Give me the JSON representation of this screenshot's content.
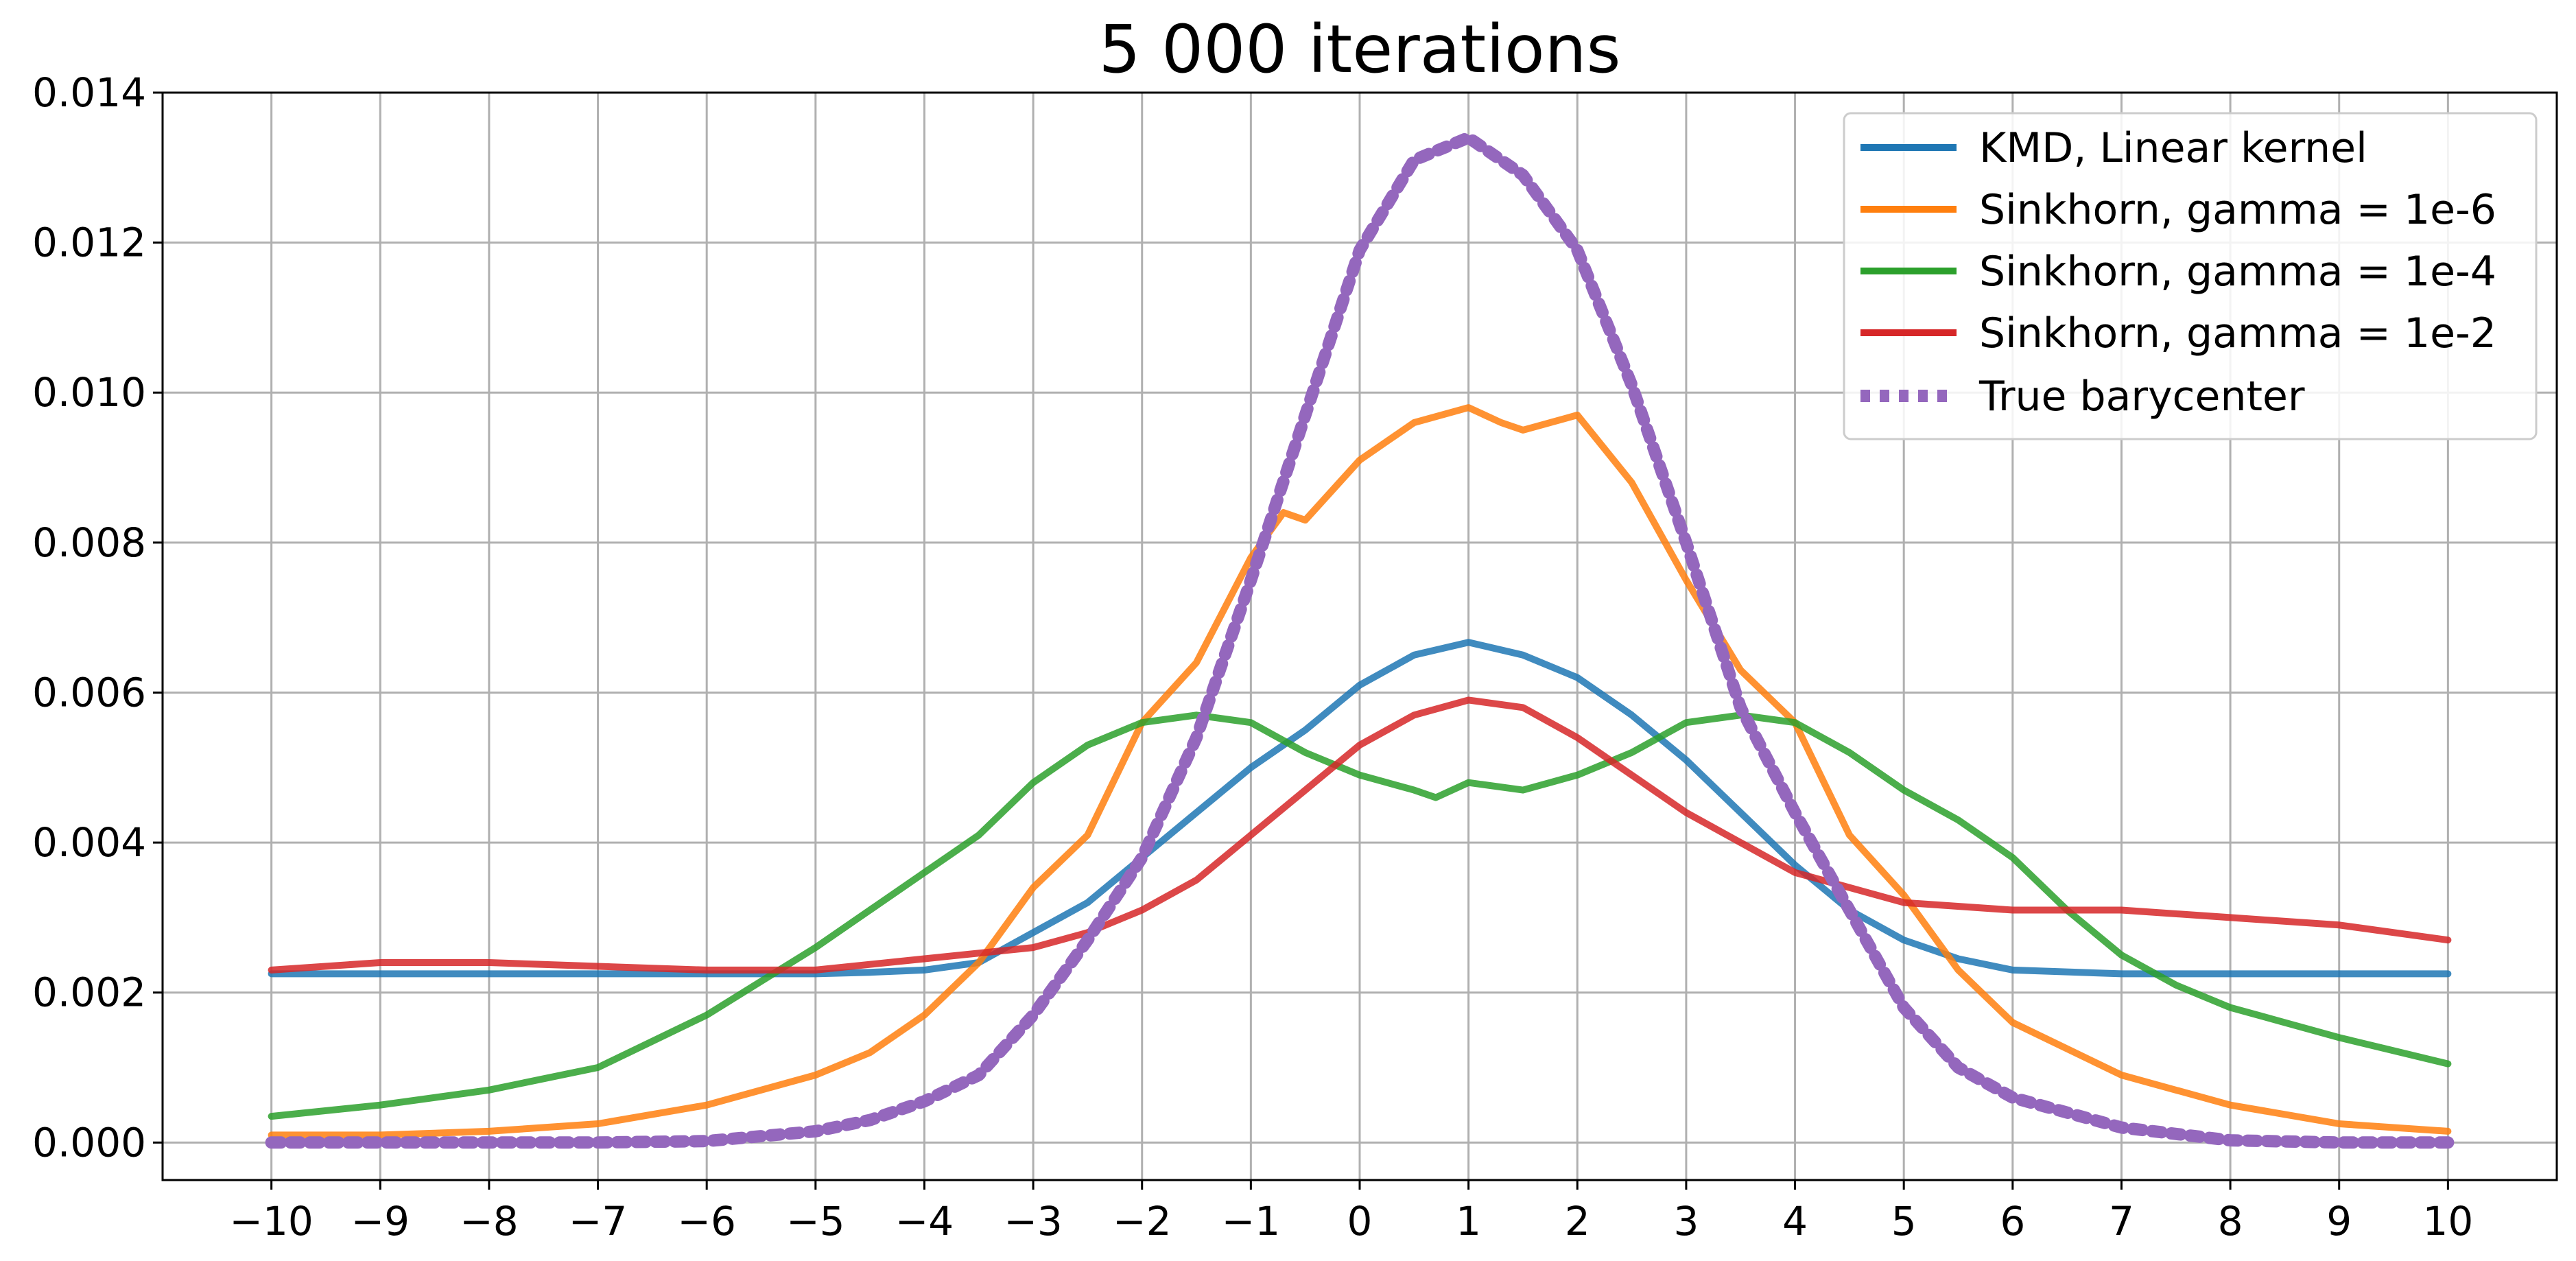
{
  "chart_data": {
    "type": "line",
    "title": "5 000 iterations",
    "xlabel": "",
    "ylabel": "",
    "xlim": [
      -11,
      11
    ],
    "ylim": [
      -0.0005,
      0.014
    ],
    "grid": true,
    "legend_position": "top-right",
    "x_ticks": [
      -10,
      -9,
      -8,
      -7,
      -6,
      -5,
      -4,
      -3,
      -2,
      -1,
      0,
      1,
      2,
      3,
      4,
      5,
      6,
      7,
      8,
      9,
      10
    ],
    "x_tick_labels": [
      "−10",
      "−9",
      "−8",
      "−7",
      "−6",
      "−5",
      "−4",
      "−3",
      "−2",
      "−1",
      "0",
      "1",
      "2",
      "3",
      "4",
      "5",
      "6",
      "7",
      "8",
      "9",
      "10"
    ],
    "y_ticks": [
      0,
      0.002,
      0.004,
      0.006,
      0.008,
      0.01,
      0.012,
      0.014
    ],
    "y_tick_labels": [
      "0.000",
      "0.002",
      "0.004",
      "0.006",
      "0.008",
      "0.010",
      "0.012",
      "0.014"
    ],
    "series": [
      {
        "name": "KMD, Linear kernel",
        "color": "#1f77b4",
        "style": "solid",
        "x": [
          -10,
          -9,
          -8,
          -7,
          -6,
          -5,
          -4.5,
          -4,
          -3.5,
          -3,
          -2.5,
          -2,
          -1.5,
          -1,
          -0.5,
          0,
          0.5,
          1,
          1.5,
          2,
          2.5,
          3,
          3.5,
          4,
          4.5,
          5,
          5.5,
          6,
          7,
          8,
          9,
          10
        ],
        "y": [
          0.00225,
          0.00225,
          0.00225,
          0.00225,
          0.00225,
          0.00225,
          0.00227,
          0.0023,
          0.0024,
          0.0028,
          0.0032,
          0.0038,
          0.0044,
          0.005,
          0.0055,
          0.0061,
          0.0065,
          0.00667,
          0.0065,
          0.0062,
          0.0057,
          0.0051,
          0.0044,
          0.0037,
          0.0031,
          0.0027,
          0.00245,
          0.0023,
          0.00225,
          0.00225,
          0.00225,
          0.00225
        ]
      },
      {
        "name": "Sinkhorn, gamma = 1e-6",
        "color": "#ff7f0e",
        "style": "solid",
        "x": [
          -10,
          -9,
          -8,
          -7,
          -6,
          -5,
          -4.5,
          -4,
          -3.5,
          -3,
          -2.5,
          -2,
          -1.5,
          -1,
          -0.7,
          -0.5,
          0,
          0.5,
          1,
          1.3,
          1.5,
          2,
          2.5,
          3,
          3.5,
          4,
          4.5,
          5,
          5.5,
          6,
          7,
          8,
          9,
          10
        ],
        "y": [
          0.0001,
          0.0001,
          0.00015,
          0.00025,
          0.0005,
          0.0009,
          0.0012,
          0.0017,
          0.0024,
          0.0034,
          0.0041,
          0.0056,
          0.0064,
          0.0078,
          0.0084,
          0.0083,
          0.0091,
          0.0096,
          0.0098,
          0.0096,
          0.0095,
          0.0097,
          0.0088,
          0.0075,
          0.0063,
          0.0056,
          0.0041,
          0.0033,
          0.0023,
          0.0016,
          0.0009,
          0.0005,
          0.00025,
          0.00015
        ]
      },
      {
        "name": "Sinkhorn, gamma = 1e-4",
        "color": "#2ca02c",
        "style": "solid",
        "x": [
          -10,
          -9,
          -8,
          -7,
          -6,
          -5,
          -4,
          -3.5,
          -3,
          -2.5,
          -2,
          -1.5,
          -1,
          -0.5,
          0,
          0.5,
          0.7,
          1,
          1.5,
          2,
          2.5,
          3,
          3.5,
          4,
          4.5,
          5,
          5.5,
          6,
          6.5,
          7,
          7.5,
          8,
          8.5,
          9,
          10
        ],
        "y": [
          0.00035,
          0.0005,
          0.0007,
          0.001,
          0.0017,
          0.0026,
          0.0036,
          0.0041,
          0.0048,
          0.0053,
          0.0056,
          0.0057,
          0.0056,
          0.0052,
          0.0049,
          0.0047,
          0.0046,
          0.0048,
          0.0047,
          0.0049,
          0.0052,
          0.0056,
          0.0057,
          0.0056,
          0.0052,
          0.0047,
          0.0043,
          0.0038,
          0.0031,
          0.0025,
          0.0021,
          0.0018,
          0.0016,
          0.0014,
          0.00105
        ]
      },
      {
        "name": "Sinkhorn, gamma = 1e-2",
        "color": "#d62728",
        "style": "solid",
        "x": [
          -10,
          -9,
          -8,
          -7,
          -6,
          -5,
          -4,
          -3,
          -2.5,
          -2,
          -1.5,
          -1,
          -0.5,
          0,
          0.5,
          1,
          1.5,
          2,
          2.5,
          3,
          3.5,
          4,
          4.5,
          5,
          6,
          7,
          8,
          9,
          10
        ],
        "y": [
          0.0023,
          0.0024,
          0.0024,
          0.00235,
          0.0023,
          0.0023,
          0.00245,
          0.0026,
          0.0028,
          0.0031,
          0.0035,
          0.0041,
          0.0047,
          0.0053,
          0.0057,
          0.0059,
          0.0058,
          0.0054,
          0.0049,
          0.0044,
          0.004,
          0.0036,
          0.0034,
          0.0032,
          0.0031,
          0.0031,
          0.003,
          0.0029,
          0.0027
        ]
      },
      {
        "name": "True barycenter",
        "color": "#9467bd",
        "style": "dotted",
        "x": [
          -10,
          -9,
          -8,
          -7,
          -6,
          -5,
          -4.5,
          -4,
          -3.5,
          -3,
          -2.5,
          -2,
          -1.5,
          -1,
          -0.5,
          0,
          0.5,
          1,
          1.5,
          2,
          2.5,
          3,
          3.5,
          4,
          4.5,
          5,
          5.5,
          6,
          7,
          8,
          9,
          10
        ],
        "y": [
          0.0,
          0.0,
          0.0,
          0.0,
          2e-05,
          0.00015,
          0.0003,
          0.00055,
          0.0009,
          0.0017,
          0.0027,
          0.0038,
          0.0054,
          0.0075,
          0.0097,
          0.0119,
          0.0131,
          0.0134,
          0.0129,
          0.0119,
          0.0101,
          0.008,
          0.0058,
          0.0044,
          0.0031,
          0.0018,
          0.001,
          0.0006,
          0.0002,
          3e-05,
          0.0,
          0.0
        ]
      }
    ]
  }
}
